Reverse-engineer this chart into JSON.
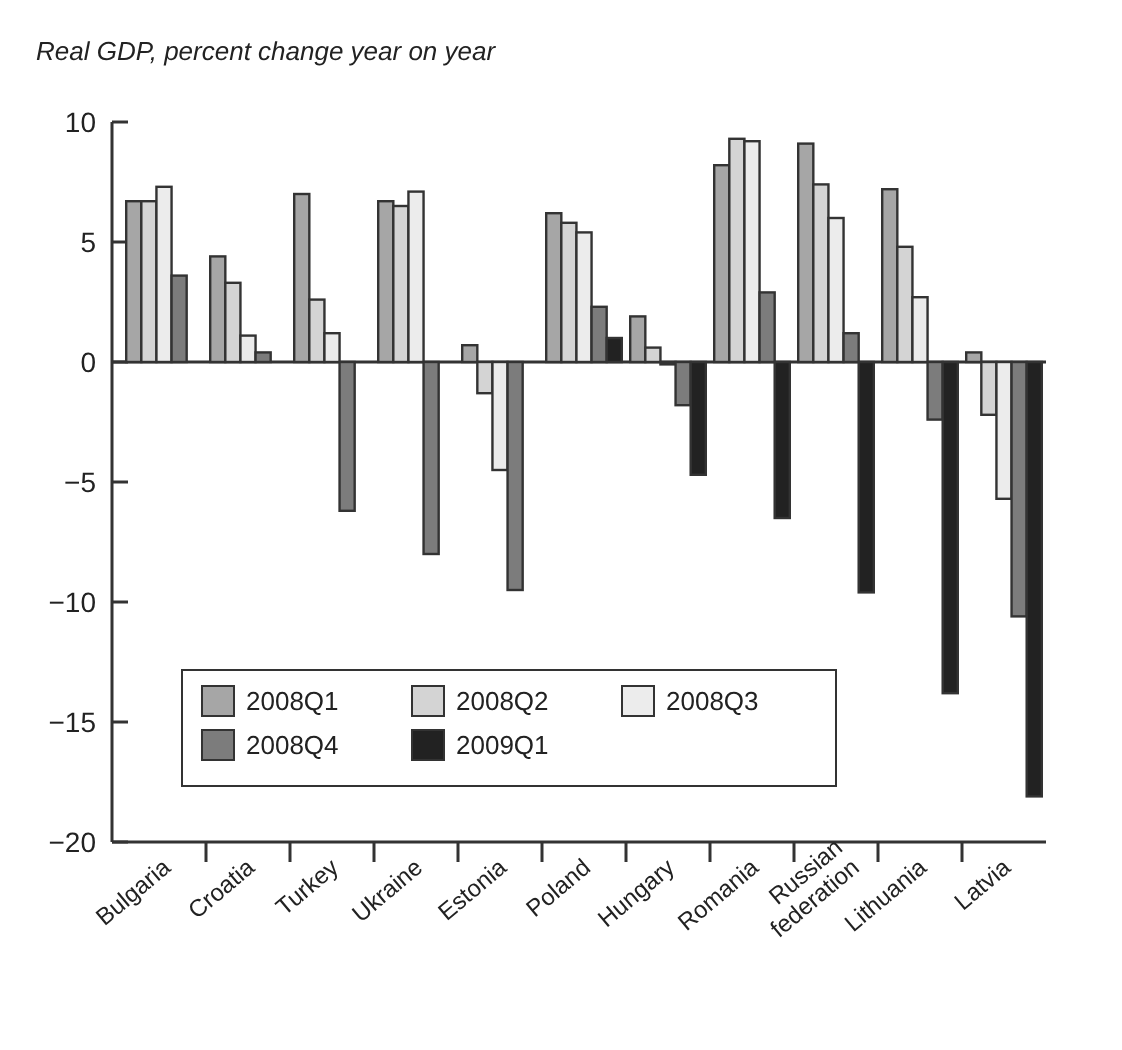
{
  "chart_data": {
    "type": "bar",
    "title": "Real GDP, percent change year on year",
    "categories": [
      "Bulgaria",
      "Croatia",
      "Turkey",
      "Ukraine",
      "Estonia",
      "Poland",
      "Hungary",
      "Romania",
      "Russian federation",
      "Lithuania",
      "Latvia"
    ],
    "series": [
      {
        "name": "2008Q1",
        "color": "#a6a6a6",
        "values": [
          6.7,
          4.4,
          7.0,
          6.7,
          0.7,
          6.2,
          1.9,
          8.2,
          9.1,
          7.2,
          0.4
        ]
      },
      {
        "name": "2008Q2",
        "color": "#d4d4d4",
        "values": [
          6.7,
          3.3,
          2.6,
          6.5,
          -1.3,
          5.8,
          0.6,
          9.3,
          7.4,
          4.8,
          -2.2
        ]
      },
      {
        "name": "2008Q3",
        "color": "#ececec",
        "values": [
          7.3,
          1.1,
          1.2,
          7.1,
          -4.5,
          5.4,
          -0.1,
          9.2,
          6.0,
          2.7,
          -5.7
        ]
      },
      {
        "name": "2008Q4",
        "color": "#7c7c7c",
        "values": [
          3.6,
          0.4,
          -6.2,
          -8.0,
          -9.5,
          2.3,
          -1.8,
          2.9,
          1.2,
          -2.4,
          -10.6
        ]
      },
      {
        "name": "2009Q1",
        "color": "#222222",
        "values": [
          null,
          null,
          null,
          null,
          null,
          1.0,
          -4.7,
          -6.5,
          -9.6,
          -13.8,
          -18.1
        ]
      }
    ],
    "ylim": [
      -20,
      10
    ],
    "yticks": [
      -20,
      -15,
      -10,
      -5,
      0,
      5,
      10
    ],
    "legend": "bottom left"
  }
}
